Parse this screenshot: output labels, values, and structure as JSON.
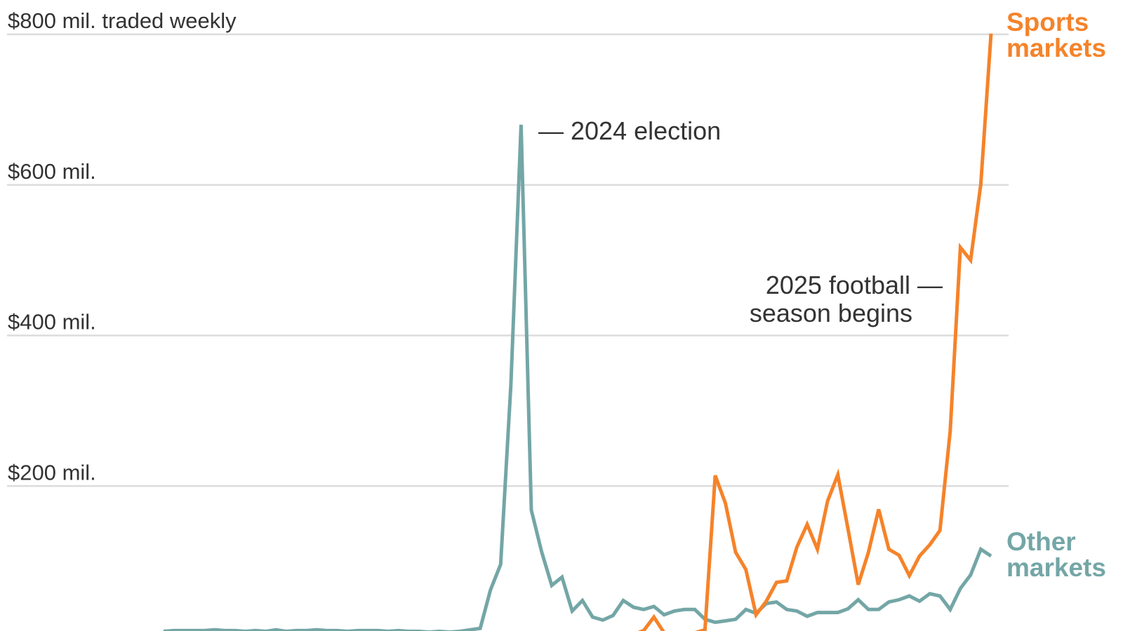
{
  "chart_data": {
    "type": "line",
    "title": "",
    "xlabel": "",
    "ylabel": "$ traded weekly",
    "ylim": [
      0,
      800
    ],
    "y_ticks": [
      {
        "value": 200,
        "label": "$200 mil."
      },
      {
        "value": 400,
        "label": "$400 mil."
      },
      {
        "value": 600,
        "label": "$600 mil."
      },
      {
        "value": 800,
        "label": "$800 mil. traded weekly"
      }
    ],
    "grid": true,
    "x_unit": "week index",
    "x_count": 82,
    "series": [
      {
        "name": "Other markets",
        "label_lines": [
          "Other",
          "markets"
        ],
        "color": "#74a6a6",
        "start_index": 0,
        "values": [
          7,
          8,
          8,
          8,
          8,
          9,
          8,
          8,
          7,
          8,
          7,
          9,
          7,
          8,
          8,
          9,
          8,
          8,
          7,
          8,
          8,
          8,
          7,
          8,
          7,
          7,
          6,
          7,
          6,
          7,
          9,
          11,
          62,
          96,
          335,
          680,
          168,
          113,
          68,
          79,
          34,
          48,
          26,
          22,
          28,
          48,
          39,
          36,
          40,
          29,
          34,
          36,
          36,
          23,
          19,
          21,
          23,
          36,
          31,
          44,
          46,
          36,
          34,
          27,
          32,
          32,
          32,
          37,
          49,
          36,
          36,
          46,
          49,
          54,
          47,
          57,
          54,
          36,
          64,
          82,
          116,
          107
        ]
      },
      {
        "name": "Sports markets",
        "label_lines": [
          "Sports",
          "markets"
        ],
        "color": "#f5832a",
        "start_index": 46,
        "values": [
          3,
          8,
          26,
          5,
          2,
          3,
          5,
          9,
          214,
          177,
          112,
          89,
          29,
          47,
          72,
          74,
          119,
          149,
          116,
          180,
          215,
          143,
          69,
          112,
          169,
          116,
          108,
          81,
          107,
          122,
          141,
          273,
          517,
          500,
          601,
          801
        ]
      }
    ],
    "annotations": [
      {
        "text": "— 2024 election",
        "series": "Other markets",
        "index": 35
      },
      {
        "lines": [
          "2025 football",
          "season begins"
        ],
        "dash": "—",
        "series": "Sports markets",
        "index": 54
      }
    ]
  }
}
